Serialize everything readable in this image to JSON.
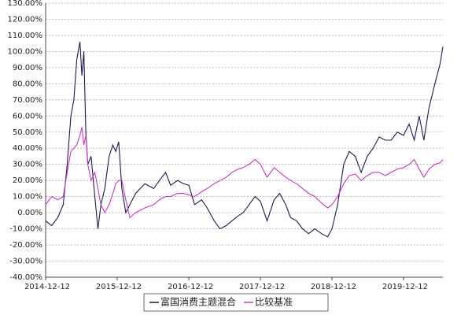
{
  "chart_data": {
    "type": "line",
    "x": [
      "2014-12-12",
      "2015-01-12",
      "2015-02-12",
      "2015-03-12",
      "2015-04-01",
      "2015-04-20",
      "2015-05-05",
      "2015-05-20",
      "2015-06-05",
      "2015-06-15",
      "2015-06-25",
      "2015-07-05",
      "2015-07-15",
      "2015-08-01",
      "2015-08-20",
      "2015-09-05",
      "2015-09-20",
      "2015-10-10",
      "2015-11-01",
      "2015-11-20",
      "2015-12-05",
      "2015-12-20",
      "2016-01-05",
      "2016-01-25",
      "2016-02-15",
      "2016-03-15",
      "2016-05-01",
      "2016-06-15",
      "2016-07-15",
      "2016-08-15",
      "2016-09-10",
      "2016-10-15",
      "2016-11-15",
      "2016-12-12",
      "2017-01-10",
      "2017-02-15",
      "2017-03-15",
      "2017-04-20",
      "2017-05-20",
      "2017-06-20",
      "2017-07-20",
      "2017-08-20",
      "2017-09-15",
      "2017-10-15",
      "2017-11-15",
      "2017-12-12",
      "2018-01-15",
      "2018-02-20",
      "2018-03-20",
      "2018-04-20",
      "2018-05-15",
      "2018-06-15",
      "2018-07-15",
      "2018-08-15",
      "2018-09-15",
      "2018-10-20",
      "2018-11-20",
      "2018-12-12",
      "2019-01-10",
      "2019-02-10",
      "2019-03-10",
      "2019-04-10",
      "2019-05-10",
      "2019-06-10",
      "2019-07-10",
      "2019-08-10",
      "2019-09-10",
      "2019-10-10",
      "2019-11-10",
      "2019-12-12",
      "2020-01-10",
      "2020-02-05",
      "2020-03-01",
      "2020-03-25",
      "2020-04-20",
      "2020-05-20",
      "2020-06-15",
      "2020-06-30"
    ],
    "series": [
      {
        "name": "富国消费主题混合",
        "color": "#1b1b4f",
        "values": [
          -5,
          -8,
          -3,
          5,
          30,
          60,
          70,
          95,
          106,
          85,
          100,
          50,
          30,
          35,
          10,
          -10,
          5,
          15,
          35,
          42,
          38,
          44,
          15,
          0,
          5,
          12,
          18,
          15,
          20,
          25,
          17,
          20,
          18,
          17,
          5,
          8,
          3,
          -5,
          -10,
          -8,
          -5,
          -2,
          0,
          5,
          10,
          7,
          -5,
          8,
          12,
          5,
          -3,
          -5,
          -10,
          -13,
          -10,
          -13,
          -15,
          -10,
          5,
          30,
          38,
          35,
          25,
          35,
          40,
          47,
          45,
          45,
          50,
          48,
          55,
          45,
          60,
          45,
          65,
          80,
          92,
          103
        ]
      },
      {
        "name": "比较基准",
        "color": "#cc33cc",
        "values": [
          5,
          10,
          8,
          10,
          25,
          38,
          40,
          42,
          48,
          53,
          42,
          48,
          30,
          20,
          25,
          15,
          5,
          0,
          5,
          12,
          18,
          20,
          20,
          8,
          -3,
          0,
          3,
          5,
          8,
          10,
          10,
          12,
          12,
          11,
          10,
          13,
          15,
          18,
          20,
          22,
          25,
          27,
          28,
          30,
          33,
          30,
          22,
          28,
          25,
          22,
          20,
          18,
          15,
          12,
          10,
          6,
          3,
          5,
          10,
          18,
          23,
          24,
          20,
          23,
          25,
          25,
          23,
          25,
          27,
          28,
          30,
          33,
          27,
          22,
          27,
          30,
          31,
          33
        ]
      }
    ],
    "xlim": [
      "2014-12-12",
      "2020-06-30"
    ],
    "xticks": [
      "2014-12-12",
      "2015-12-12",
      "2016-12-12",
      "2017-12-12",
      "2018-12-12",
      "2019-12-12"
    ],
    "ylim": [
      -40,
      130
    ],
    "yticks": [
      {
        "value": -40,
        "label": "-40.00%"
      },
      {
        "value": -30,
        "label": "-30.00%"
      },
      {
        "value": -20,
        "label": "-20.00%"
      },
      {
        "value": -10,
        "label": "-10.00%"
      },
      {
        "value": 0,
        "label": "0.00%"
      },
      {
        "value": 10,
        "label": "10.00%"
      },
      {
        "value": 20,
        "label": "20.00%"
      },
      {
        "value": 30,
        "label": "30.00%"
      },
      {
        "value": 40,
        "label": "40.00%"
      },
      {
        "value": 50,
        "label": "50.00%"
      },
      {
        "value": 60,
        "label": "60.00%"
      },
      {
        "value": 70,
        "label": "70.00%"
      },
      {
        "value": 80,
        "label": "80.00%"
      },
      {
        "value": 90,
        "label": "90.00%"
      },
      {
        "value": 100,
        "label": "100.00%"
      },
      {
        "value": 110,
        "label": "110.00%"
      },
      {
        "value": 120,
        "label": "120.00%"
      },
      {
        "value": 130,
        "label": "130.00%"
      }
    ],
    "grid": true,
    "legend": "bottom"
  }
}
